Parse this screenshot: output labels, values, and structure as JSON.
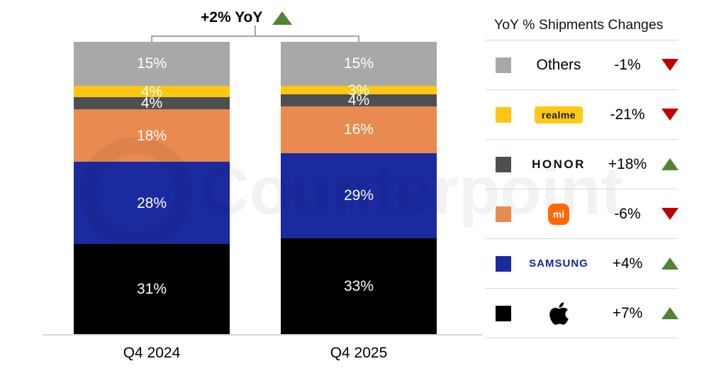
{
  "header": {
    "title_label": "+2% YoY",
    "title_direction": "up"
  },
  "watermark": {
    "text": "Counterpoint",
    "logo": "counterpoint-ring-logo"
  },
  "chart_data": {
    "type": "bar",
    "stacked": true,
    "unit": "%",
    "title": "+2% YoY",
    "categories": [
      "Q4 2024",
      "Q4 2025"
    ],
    "series": [
      {
        "name": "Apple",
        "color": "#000000",
        "values": [
          31,
          33
        ]
      },
      {
        "name": "Samsung",
        "color": "#1c2aa0",
        "values": [
          28,
          29
        ]
      },
      {
        "name": "Xiaomi",
        "color": "#e98a50",
        "values": [
          18,
          16
        ]
      },
      {
        "name": "HONOR",
        "color": "#4d5052",
        "values": [
          4,
          4
        ]
      },
      {
        "name": "realme",
        "color": "#ffc613",
        "values": [
          4,
          3
        ]
      },
      {
        "name": "Others",
        "color": "#a8a8a8",
        "values": [
          15,
          15
        ]
      }
    ],
    "ylim": [
      0,
      100
    ],
    "grid": false,
    "legend_position": "right"
  },
  "legend": {
    "header": "YoY % Shipments Changes",
    "rows": [
      {
        "brand": "Others",
        "display": "text",
        "icon": "gray-square-swatch",
        "value": "-1%",
        "direction": "down",
        "swatch": "#a8a8a8"
      },
      {
        "brand": "realme",
        "display": "realme-badge",
        "icon": "realme-logo",
        "value": "-21%",
        "direction": "down",
        "swatch": "#ffc613",
        "badge_bg": "#ffc915"
      },
      {
        "brand": "HONOR",
        "display": "honor-wordmark",
        "icon": "honor-wordmark",
        "value": "+18%",
        "direction": "up",
        "swatch": "#4d5052"
      },
      {
        "brand": "mi",
        "display": "mi-logo",
        "icon": "xiaomi-mi-logo",
        "value": "-6%",
        "direction": "down",
        "swatch": "#e98a50",
        "logo_bg": "#ff6900"
      },
      {
        "brand": "SAMSUNG",
        "display": "samsung-wordmark",
        "icon": "samsung-wordmark",
        "value": "+4%",
        "direction": "up",
        "swatch": "#1c2aa0",
        "wordmark_color": "#1428a0"
      },
      {
        "brand": "Apple",
        "display": "apple-logo",
        "icon": "apple-logo",
        "value": "+7%",
        "direction": "up",
        "swatch": "#000000"
      }
    ]
  },
  "colors": {
    "trend_up": "#548235",
    "trend_down": "#c00000",
    "axis_line": "#d8d8d8",
    "bracket": "#a6a6a6"
  }
}
